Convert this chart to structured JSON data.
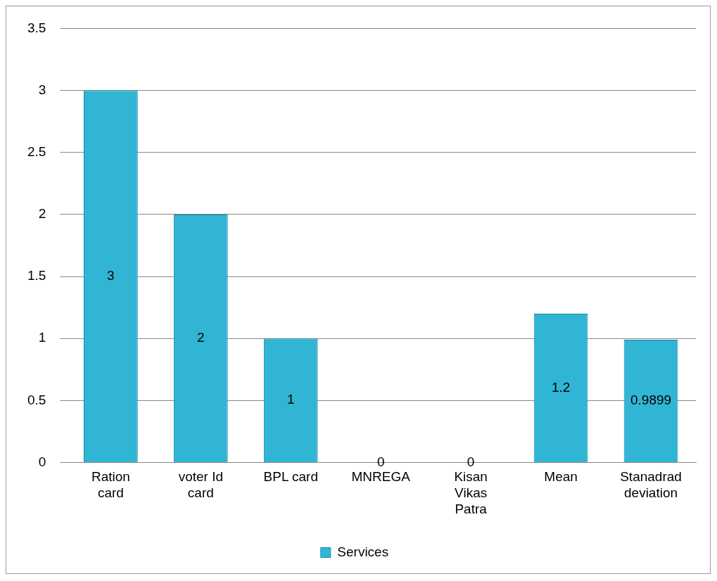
{
  "chart_data": {
    "type": "bar",
    "categories": [
      "Ration card",
      "voter Id card",
      "BPL card",
      "MNREGA",
      "Kisan Vikas Patra",
      "Mean",
      "Stanadrad deviation"
    ],
    "series": [
      {
        "name": "Services",
        "color": "#31b5d5",
        "values": [
          3,
          2,
          1,
          0,
          0,
          1.2,
          0.9899
        ]
      }
    ],
    "ylim": [
      0,
      3.5
    ],
    "yticks": [
      0,
      0.5,
      1,
      1.5,
      2,
      2.5,
      3,
      3.5
    ],
    "grid": "y",
    "legend": "bottom",
    "data_labels": true
  }
}
